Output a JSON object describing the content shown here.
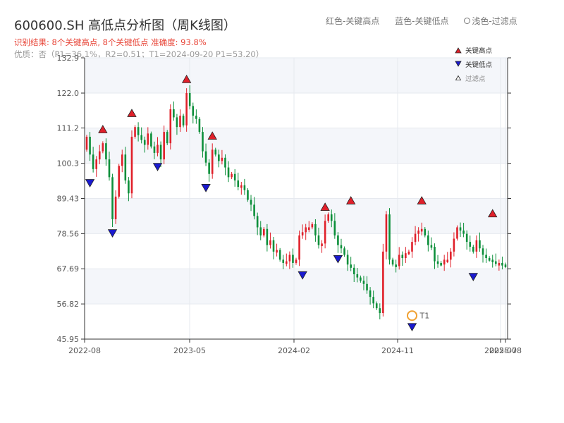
{
  "header": {
    "title": "600600.SH 高低点分析图（周K线图）",
    "subtitle": "识别结果: 8个关键高点, 8个关键低点  准确度: 93.8%",
    "info": "优质：否（P1=36.1%，R2=0.51；T1=2024-09-20 P1=53.20）"
  },
  "top_legend": {
    "red": "红色-关键高点",
    "blue": "蓝色-关键低点",
    "faded": "浅色-过滤点"
  },
  "colors": {
    "up": "#e0202a",
    "down": "#0c8f3a",
    "high_marker": "#e0202a",
    "low_marker": "#1a1acf",
    "t1_marker": "#f0a030",
    "grid": "#e6e9ef",
    "band": "#f4f6fa"
  },
  "chart_data": {
    "type": "candlestick",
    "ylim": [
      45.95,
      132.9
    ],
    "y_ticks": [
      "132.9",
      "122.0",
      "111.2",
      "100.3",
      "89.43",
      "78.56",
      "67.69",
      "56.82",
      "45.95"
    ],
    "x_ticks": [
      "2022-08",
      "2023-05",
      "2024-02",
      "2024-11",
      "2025-07",
      "2025-08"
    ],
    "legend": {
      "high": "关键高点",
      "low": "关键低点",
      "filtered": "过滤点"
    },
    "t1_label": "T1",
    "closes": [
      108.5,
      103.0,
      98.5,
      101.5,
      104.0,
      106.5,
      101.5,
      96.0,
      83.0,
      90.0,
      99.5,
      103.0,
      95.0,
      91.0,
      108.5,
      111.5,
      109.0,
      107.5,
      106.0,
      109.5,
      105.5,
      103.5,
      106.0,
      101.5,
      110.0,
      106.5,
      117.0,
      114.5,
      111.5,
      115.0,
      112.0,
      122.0,
      118.0,
      115.0,
      114.0,
      110.0,
      104.0,
      100.5,
      97.0,
      104.5,
      103.0,
      101.0,
      102.0,
      99.0,
      96.0,
      97.0,
      95.0,
      93.0,
      93.5,
      92.0,
      89.0,
      87.5,
      84.0,
      80.5,
      78.0,
      80.0,
      75.0,
      76.5,
      73.0,
      73.5,
      70.5,
      69.5,
      70.0,
      72.0,
      69.5,
      70.5,
      78.0,
      79.0,
      80.5,
      80.5,
      81.5,
      78.0,
      75.0,
      75.5,
      82.5,
      84.5,
      82.5,
      78.0,
      75.0,
      74.0,
      72.0,
      69.0,
      68.0,
      66.0,
      65.0,
      64.0,
      63.0,
      61.0,
      59.0,
      57.0,
      55.5,
      54.0,
      73.0,
      84.5,
      70.5,
      69.0,
      68.5,
      72.0,
      71.0,
      72.5,
      73.0,
      76.0,
      78.5,
      79.5,
      80.0,
      78.0,
      75.0,
      74.5,
      70.0,
      69.5,
      69.0,
      70.5,
      70.5,
      73.0,
      77.0,
      80.5,
      79.5,
      78.5,
      76.0,
      74.5,
      73.0,
      76.5,
      74.0,
      72.0,
      71.0,
      70.5,
      70.0,
      69.5,
      69.5,
      69.0,
      68.5
    ],
    "key_highs": [
      {
        "i": 5,
        "price": 106.5
      },
      {
        "i": 14,
        "price": 111.5
      },
      {
        "i": 31,
        "price": 122.0
      },
      {
        "i": 39,
        "price": 104.5
      },
      {
        "i": 74,
        "price": 82.5
      },
      {
        "i": 82,
        "price": 84.5
      },
      {
        "i": 104,
        "price": 84.5
      },
      {
        "i": 126,
        "price": 80.5
      }
    ],
    "key_lows": [
      {
        "i": 1,
        "price": 98.5
      },
      {
        "i": 8,
        "price": 83.0
      },
      {
        "i": 22,
        "price": 103.5
      },
      {
        "i": 37,
        "price": 97.0
      },
      {
        "i": 67,
        "price": 70.0
      },
      {
        "i": 78,
        "price": 75.0
      },
      {
        "i": 101,
        "price": 54.0
      },
      {
        "i": 120,
        "price": 69.5
      }
    ],
    "t1": {
      "i": 101,
      "price": 53.2
    }
  }
}
